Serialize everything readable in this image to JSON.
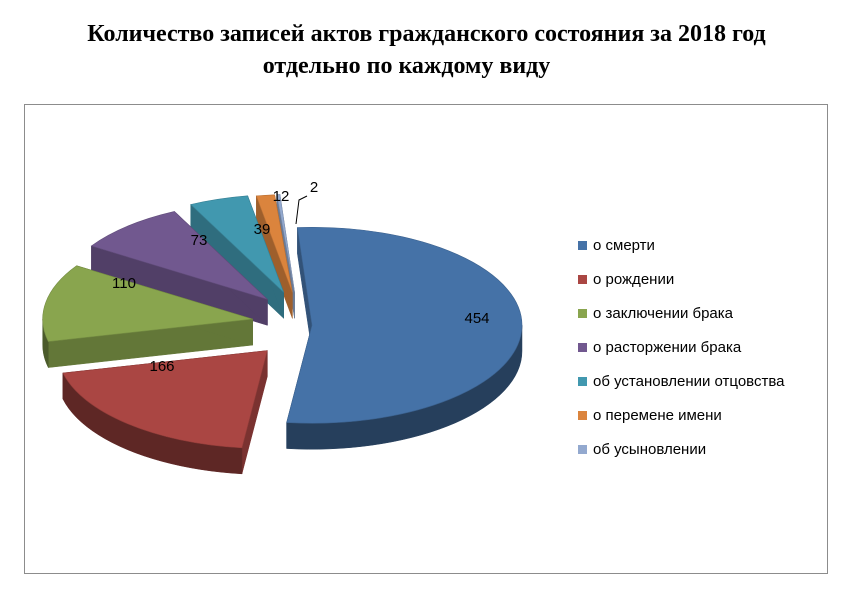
{
  "chart_data": {
    "type": "pie",
    "title_line1": "Количество записей актов гражданского состояния за 2018 год",
    "title_line2": "отдельно по каждому виду",
    "style": "3d-exploded",
    "legend_position": "right",
    "slices": [
      {
        "label": "о смерти",
        "value": 454,
        "color": "#4572a7"
      },
      {
        "label": "о рождении",
        "value": 166,
        "color": "#aa4643"
      },
      {
        "label": "о заключении брака",
        "value": 110,
        "color": "#89a54e"
      },
      {
        "label": "о расторжении брака",
        "value": 73,
        "color": "#71588f"
      },
      {
        "label": "об установлении отцовства",
        "value": 39,
        "color": "#4198af"
      },
      {
        "label": "о перемене имени",
        "value": 12,
        "color": "#db843d"
      },
      {
        "label": "об усыновлении",
        "value": 2,
        "color": "#93a9cf"
      }
    ]
  }
}
